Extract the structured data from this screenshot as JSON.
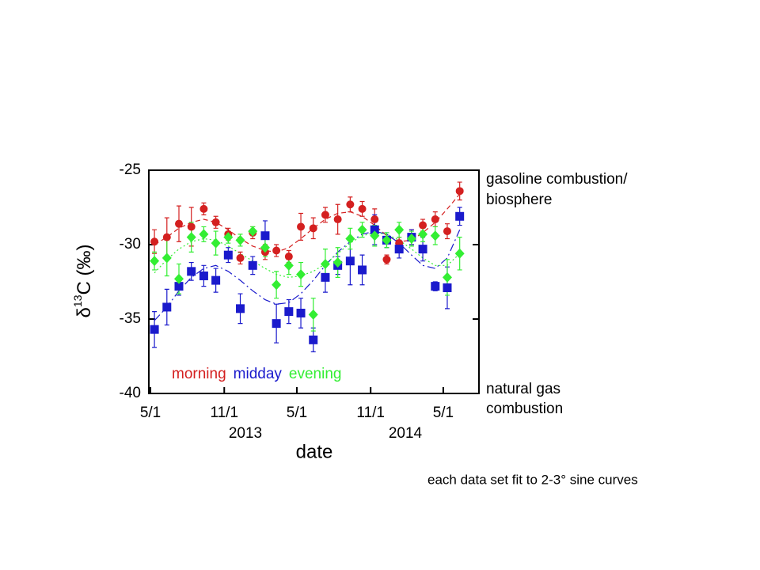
{
  "chart_data": {
    "type": "scatter",
    "ylabel": {
      "symbol": "δ",
      "superscript": "13",
      "text": "C (‰)"
    },
    "xlabel": "date",
    "x": [
      "2013-05-11",
      "2013-06-11",
      "2013-07-11",
      "2013-08-11",
      "2013-09-11",
      "2013-10-11",
      "2013-11-11",
      "2013-12-11",
      "2014-01-11",
      "2014-02-11",
      "2014-03-11",
      "2014-04-11",
      "2014-05-11",
      "2014-06-11",
      "2014-07-11",
      "2014-08-11",
      "2014-09-11",
      "2014-10-11",
      "2014-11-11",
      "2014-12-11",
      "2015-01-11",
      "2015-02-11",
      "2015-03-11",
      "2015-04-11",
      "2015-05-11",
      "2015-06-11"
    ],
    "xlim": [
      "2013-04-27",
      "2015-07-29"
    ],
    "xticks": [
      {
        "value": "2013-05-01",
        "label": "5/1"
      },
      {
        "value": "2013-11-01",
        "label": "11/1"
      },
      {
        "value": "2014-05-01",
        "label": "5/1"
      },
      {
        "value": "2014-11-01",
        "label": "11/1"
      },
      {
        "value": "2015-05-01",
        "label": "5/1"
      }
    ],
    "year_labels": [
      "2013",
      "2014"
    ],
    "ylim": [
      -40,
      -25
    ],
    "yticks": [
      -25,
      -30,
      -35,
      -40
    ],
    "series": [
      {
        "name": "morning",
        "color": "#d42020",
        "marker": "circle",
        "values": [
          -29.8,
          -29.5,
          -28.6,
          -28.8,
          -27.6,
          -28.5,
          -29.3,
          -30.9,
          -29.2,
          -30.5,
          -30.4,
          -30.8,
          -28.8,
          -28.9,
          -28.0,
          -28.3,
          -27.3,
          -27.6,
          -28.3,
          -31.0,
          -29.9,
          -29.5,
          -28.7,
          -28.3,
          -29.1,
          -26.4
        ],
        "errors": [
          0.8,
          1.3,
          1.2,
          1.3,
          0.4,
          0.4,
          0.4,
          0.4,
          0.4,
          0.5,
          0.4,
          0.4,
          0.9,
          0.7,
          0.5,
          1.0,
          0.5,
          0.5,
          0.7,
          0.3,
          0.4,
          0.5,
          0.4,
          0.5,
          0.5,
          0.6
        ],
        "fit": [
          -30.0,
          -29.5,
          -28.9,
          -28.5,
          -28.3,
          -28.5,
          -29.0,
          -29.6,
          -30.1,
          -30.4,
          -30.5,
          -30.2,
          -29.6,
          -28.9,
          -28.3,
          -27.9,
          -27.8,
          -28.1,
          -28.7,
          -29.4,
          -29.8,
          -29.7,
          -29.2,
          -28.5,
          -27.6,
          -26.6
        ]
      },
      {
        "name": "midday",
        "color": "#1a1acc",
        "marker": "square",
        "values": [
          -35.7,
          -34.2,
          -32.8,
          -31.8,
          -32.1,
          -32.4,
          -30.7,
          -34.3,
          -31.4,
          -29.4,
          -35.3,
          -34.5,
          -34.6,
          -36.4,
          -32.2,
          -31.4,
          -31.1,
          -31.7,
          -29.0,
          -29.7,
          -30.3,
          -29.5,
          -30.3,
          -32.8,
          -32.9,
          -28.1
        ],
        "errors": [
          1.2,
          1.2,
          0.6,
          0.6,
          0.7,
          0.8,
          0.5,
          1.0,
          0.6,
          1.0,
          1.3,
          0.8,
          1.0,
          0.8,
          1.0,
          0.6,
          1.6,
          1.0,
          1.0,
          0.5,
          0.6,
          0.5,
          0.8,
          0.3,
          1.4,
          0.6
        ],
        "fit": [
          -35.1,
          -34.2,
          -33.1,
          -32.2,
          -31.6,
          -31.4,
          -31.8,
          -32.4,
          -33.1,
          -33.7,
          -34.0,
          -33.9,
          -33.3,
          -32.4,
          -31.4,
          -30.5,
          -29.8,
          -29.3,
          -29.1,
          -29.3,
          -29.9,
          -30.7,
          -31.4,
          -31.6,
          -30.9,
          -29.0
        ]
      },
      {
        "name": "evening",
        "color": "#33ee33",
        "marker": "diamond",
        "values": [
          -31.1,
          -30.9,
          -32.3,
          -29.5,
          -29.3,
          -29.9,
          -29.5,
          -29.7,
          -29.1,
          -30.2,
          -32.7,
          -31.4,
          -32.0,
          -34.7,
          -31.3,
          -31.2,
          -29.6,
          -29.0,
          -29.4,
          -29.7,
          -29.0,
          -29.6,
          -29.3,
          -29.4,
          -32.2,
          -30.6
        ],
        "errors": [
          0.6,
          1.2,
          1.0,
          1.0,
          0.5,
          0.8,
          0.4,
          0.4,
          0.3,
          0.6,
          0.9,
          0.6,
          0.8,
          1.1,
          1.0,
          1.0,
          0.7,
          0.5,
          0.7,
          0.5,
          0.5,
          0.5,
          0.5,
          0.6,
          1.2,
          1.1
        ],
        "fit": [
          -31.9,
          -31.0,
          -30.3,
          -29.8,
          -29.6,
          -29.7,
          -30.1,
          -30.6,
          -31.1,
          -31.6,
          -32.0,
          -32.2,
          -32.1,
          -31.8,
          -31.3,
          -30.6,
          -29.9,
          -29.4,
          -29.2,
          -29.3,
          -29.7,
          -30.3,
          -30.9,
          -31.4,
          -31.4,
          -30.6
        ]
      }
    ],
    "annotations": {
      "top": [
        "gasoline combustion/",
        "biosphere"
      ],
      "bottom": [
        "natural gas",
        "combustion"
      ],
      "footnote": "each data set fit to 2-3° sine curves"
    }
  }
}
